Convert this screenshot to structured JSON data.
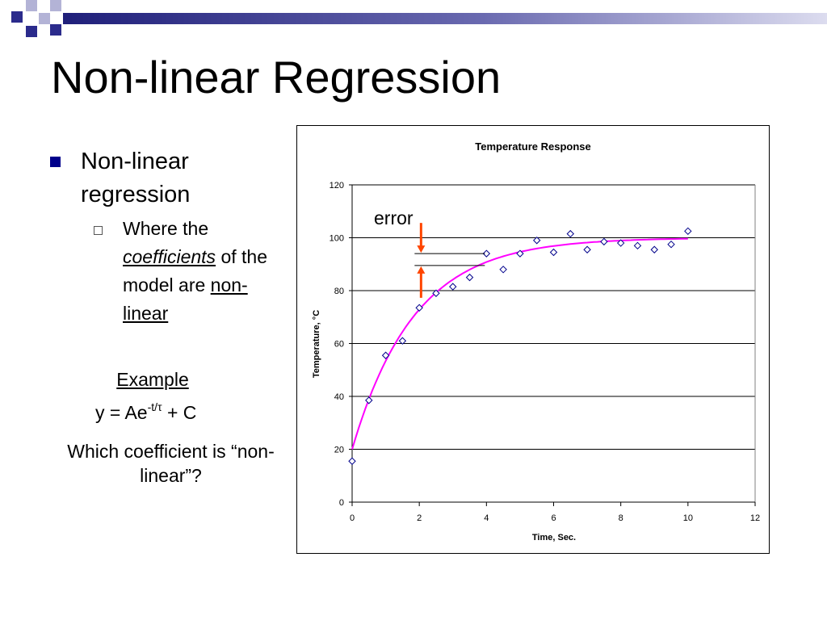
{
  "slide": {
    "title": "Non-linear Regression",
    "bullet": "Non-linear regression",
    "sub_bullet": {
      "text_before": "Where the",
      "coefficients": "coefficients",
      "text_middle": "of the model are",
      "nonlinear": "non-linear"
    },
    "example_label": "Example",
    "formula": {
      "base": "y = Ae",
      "exponent": "-t/τ",
      "tail": " + C"
    },
    "question": "Which coefficient is “non-linear”?",
    "error_label": "error",
    "colors": {
      "bullet": "#00008b",
      "deco_dark": "#2b2b8c",
      "deco_light": "#b3b3d6",
      "fit_curve": "#ff00ff",
      "marker": "#00008b",
      "arrow": "#ff4500"
    }
  },
  "chart_data": {
    "type": "scatter",
    "title": "Temperature Response",
    "xlabel": "Time, Sec.",
    "ylabel": "Temperature, °C",
    "xlim": [
      0,
      12
    ],
    "ylim": [
      0,
      120
    ],
    "xticks": [
      0,
      2,
      4,
      6,
      8,
      10,
      12
    ],
    "yticks": [
      0,
      20,
      40,
      60,
      80,
      100,
      120
    ],
    "grid": "horizontal",
    "series": [
      {
        "kind": "points",
        "marker": "diamond",
        "points": [
          [
            0,
            15.5
          ],
          [
            0.5,
            38.5
          ],
          [
            1,
            55.5
          ],
          [
            1.5,
            61
          ],
          [
            2,
            73.5
          ],
          [
            2.5,
            79
          ],
          [
            3,
            81.5
          ],
          [
            3.5,
            85
          ],
          [
            4,
            94
          ],
          [
            4.5,
            88
          ],
          [
            5,
            94
          ],
          [
            5.5,
            99
          ],
          [
            6,
            94.5
          ],
          [
            6.5,
            101.5
          ],
          [
            7,
            95.5
          ],
          [
            7.5,
            98.5
          ],
          [
            8,
            98
          ],
          [
            8.5,
            97
          ],
          [
            9,
            95.5
          ],
          [
            9.5,
            97.5
          ],
          [
            10,
            102.5
          ]
        ]
      },
      {
        "kind": "fit",
        "model": "y = A*exp(-t/tau) + C",
        "A": -80,
        "tau": 1.85,
        "C": 100,
        "x_range": [
          0,
          10
        ]
      }
    ],
    "error_annotation": {
      "x": 4,
      "y_point": 94,
      "y_fit": 89.5
    }
  }
}
